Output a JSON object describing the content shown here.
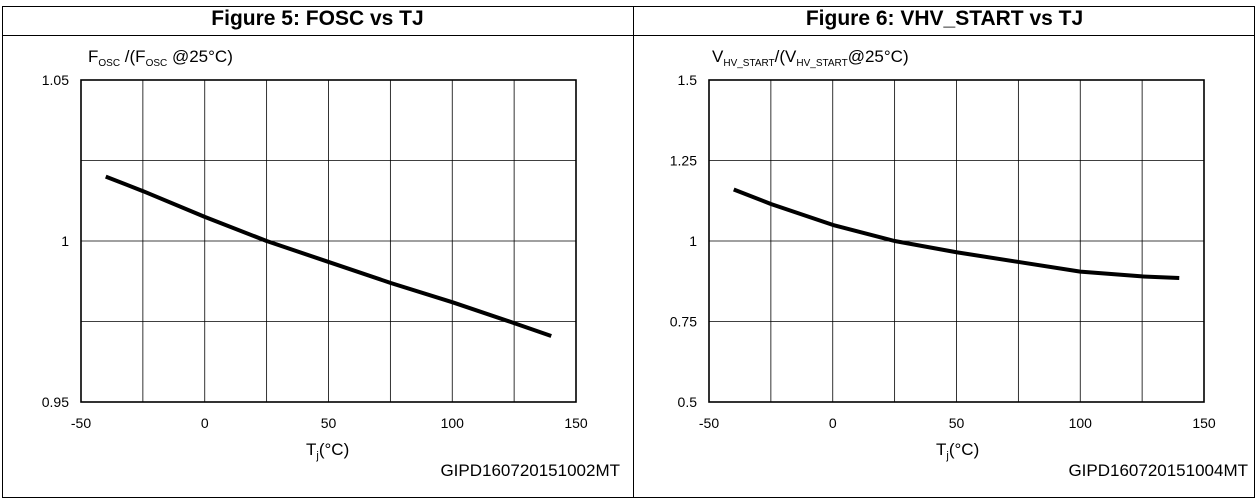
{
  "chart_data": [
    {
      "type": "line",
      "title": "Figure 5: FOSC vs TJ",
      "ylabel": {
        "main": "F",
        "sub": "OSC",
        "mid": " /(F",
        "sub2": "OSC",
        "tail": " @25°C)"
      },
      "xlabel": {
        "main": "T",
        "sub": "j",
        "tail": "(°C)"
      },
      "xlim": [
        -50,
        150
      ],
      "ylim": [
        0.95,
        1.05
      ],
      "xticks": [
        "-50",
        "0",
        "50",
        "100",
        "150"
      ],
      "yticks": [
        "0.95",
        "1",
        "1.05"
      ],
      "x_grid": [
        -50,
        -25,
        0,
        25,
        50,
        75,
        100,
        125,
        150
      ],
      "y_grid": [
        0.95,
        0.975,
        1.0,
        1.025,
        1.05
      ],
      "series": [
        {
          "x": [
            -40,
            -25,
            0,
            25,
            50,
            75,
            100,
            125,
            140
          ],
          "y": [
            1.02,
            1.0155,
            1.0075,
            1.0,
            0.9935,
            0.987,
            0.981,
            0.9745,
            0.9705
          ]
        }
      ],
      "code": "GIPD160720151002MT"
    },
    {
      "type": "line",
      "title": "Figure 6: VHV_START vs TJ",
      "ylabel": {
        "main": "V",
        "sub": "HV_START",
        "mid": "/(V",
        "sub2": "HV_START",
        "tail": "@25°C)"
      },
      "xlabel": {
        "main": "T",
        "sub": "j",
        "tail": "(°C)"
      },
      "xlim": [
        -50,
        150
      ],
      "ylim": [
        0.5,
        1.5
      ],
      "xticks": [
        "-50",
        "0",
        "50",
        "100",
        "150"
      ],
      "yticks": [
        "0.5",
        "0.75",
        "1",
        "1.25",
        "1.5"
      ],
      "x_grid": [
        -50,
        -25,
        0,
        25,
        50,
        75,
        100,
        125,
        150
      ],
      "y_grid": [
        0.5,
        0.75,
        1.0,
        1.25,
        1.5
      ],
      "series": [
        {
          "x": [
            -40,
            -25,
            0,
            25,
            50,
            75,
            100,
            125,
            140
          ],
          "y": [
            1.16,
            1.115,
            1.05,
            1.0,
            0.965,
            0.935,
            0.905,
            0.89,
            0.885
          ]
        }
      ],
      "code": "GIPD160720151004MT"
    }
  ]
}
